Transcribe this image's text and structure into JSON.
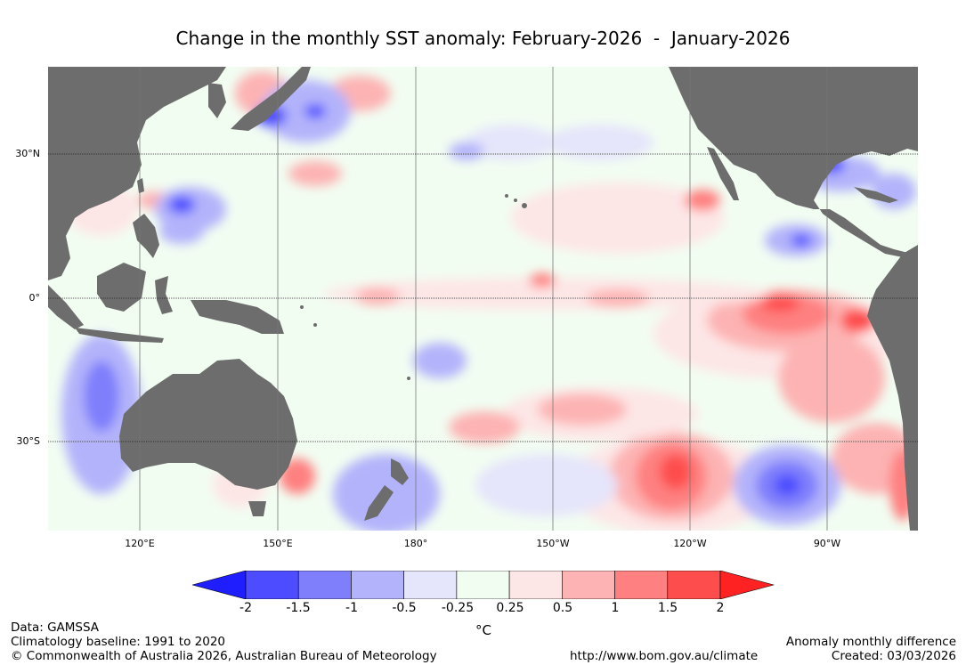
{
  "title": "Change in the monthly SST anomaly: February-2026  -  January-2026",
  "axes": {
    "lat_labels": [
      "30°N",
      "0°",
      "30°S"
    ],
    "lon_labels": [
      "120°E",
      "150°E",
      "180°",
      "150°W",
      "120°W",
      "90°W"
    ]
  },
  "colorbar": {
    "ticks": [
      "-2",
      "-1.5",
      "-1",
      "-0.5",
      "-0.25",
      "0.25",
      "0.5",
      "1",
      "1.5",
      "2"
    ],
    "colors": [
      "#1e1eff",
      "#4d4dff",
      "#7f7ffc",
      "#b3b3fb",
      "#e5e5fb",
      "#f2fdf2",
      "#fde6e6",
      "#fdb3b3",
      "#fe8080",
      "#fe4d4d",
      "#ff2222"
    ],
    "unit": "°C"
  },
  "footer": {
    "left": [
      "Data: GAMSSA",
      "Climatology baseline: 1991 to 2020",
      "© Commonwealth of Australia 2026, Australian Bureau of Meteorology"
    ],
    "center": "http://www.bom.gov.au/climate",
    "right": [
      "Anomaly monthly difference",
      "Created: 03/03/2026"
    ]
  },
  "colors": {
    "land": "#6d6d6d",
    "ocean_neutral": "#f2fdf2"
  }
}
